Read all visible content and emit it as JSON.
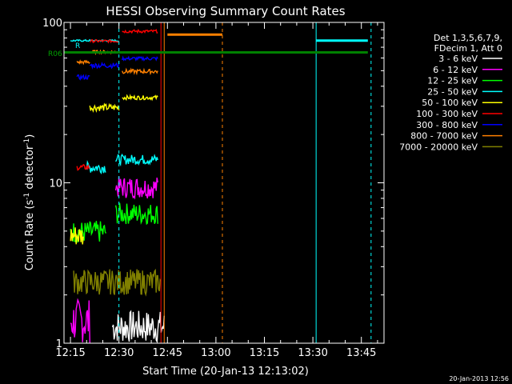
{
  "chart_data": {
    "type": "line",
    "title": "HESSI Observing Summary Count Rates",
    "xlabel": "Start Time (20-Jan-13 12:13:02)",
    "ylabel_main": "Count Rate (s",
    "ylabel_sup1": "-1",
    "ylabel_mid": " detector",
    "ylabel_sup2": "-1",
    "ylabel_end": ")",
    "yscale": "log",
    "ylim": [
      1,
      100
    ],
    "xlim_minutes": [
      "12:13",
      "13:52"
    ],
    "xticks": [
      "12:15",
      "12:30",
      "12:45",
      "13:00",
      "13:15",
      "13:30",
      "13:45"
    ],
    "yticks": [
      "1",
      "10",
      "100"
    ],
    "timestamp": "20-Jan-2013 12:56",
    "legend": {
      "title1": "Det 1,3,5,6,7,9,",
      "title2": "FDecim 1, Att 0",
      "placement": "right",
      "entries": [
        {
          "label": "3 - 6 keV",
          "color": "#ffffff"
        },
        {
          "label": "6 - 12 keV",
          "color": "#ff00ff"
        },
        {
          "label": "12 - 25 keV",
          "color": "#00ff00"
        },
        {
          "label": "25 - 50 keV",
          "color": "#00ffff"
        },
        {
          "label": "50 - 100 keV",
          "color": "#ffff00"
        },
        {
          "label": "100 - 300 keV",
          "color": "#ff0000"
        },
        {
          "label": "300 - 800 keV",
          "color": "#0000ff"
        },
        {
          "label": "800 - 7000 keV",
          "color": "#ff8000"
        },
        {
          "label": "7000 - 20000 keV",
          "color": "#808000"
        }
      ]
    },
    "markers": [
      {
        "label": "R06",
        "color": "#008000"
      },
      {
        "label": "R",
        "color": "#00ffff"
      }
    ],
    "series": [
      {
        "name": "3 - 6 keV",
        "color": "#ffffff",
        "segments": [
          {
            "t": [
              "12:28",
              "12:44"
            ],
            "y": [
              1.0,
              1.6
            ]
          }
        ]
      },
      {
        "name": "6 - 12 keV",
        "color": "#ff00ff",
        "segments": [
          {
            "t": [
              "12:15",
              "12:21"
            ],
            "y": [
              1.0,
              1.9
            ]
          },
          {
            "t": [
              "12:29",
              "12:42"
            ],
            "y": [
              8.0,
              11.0
            ]
          }
        ]
      },
      {
        "name": "12 - 25 keV",
        "color": "#00ff00",
        "segments": [
          {
            "t": [
              "12:15",
              "12:26"
            ],
            "y": [
              4.2,
              5.8
            ]
          },
          {
            "t": [
              "12:29",
              "12:42"
            ],
            "y": [
              5.5,
              7.5
            ]
          }
        ]
      },
      {
        "name": "25 - 50 keV",
        "color": "#00ffff",
        "segments": [
          {
            "t": [
              "12:15",
              "12:30"
            ],
            "y": [
              76,
              78
            ]
          },
          {
            "t": [
              "12:20",
              "12:26"
            ],
            "y": [
              11.5,
              13.5
            ]
          },
          {
            "t": [
              "12:29",
              "12:42"
            ],
            "y": [
              13.0,
              15.0
            ]
          },
          {
            "t": [
              "13:31",
              "13:47"
            ],
            "y": [
              77,
              77
            ]
          }
        ]
      },
      {
        "name": "50 - 100 keV",
        "color": "#ffff00",
        "segments": [
          {
            "t": [
              "12:15",
              "12:19"
            ],
            "y": [
              4.0,
              5.5
            ]
          },
          {
            "t": [
              "12:21",
              "12:30"
            ],
            "y": [
              28,
              31
            ]
          },
          {
            "t": [
              "12:31",
              "12:42"
            ],
            "y": [
              33,
              35
            ]
          }
        ]
      },
      {
        "name": "100 - 300 keV",
        "color": "#ff0000",
        "segments": [
          {
            "t": [
              "12:17",
              "12:21"
            ],
            "y": [
              12,
              13
            ]
          },
          {
            "t": [
              "12:21",
              "12:30"
            ],
            "y": [
              75,
              78
            ]
          },
          {
            "t": [
              "12:31",
              "12:42"
            ],
            "y": [
              86,
              90
            ]
          }
        ]
      },
      {
        "name": "300 - 800 keV",
        "color": "#0000ff",
        "segments": [
          {
            "t": [
              "12:17",
              "12:21"
            ],
            "y": [
              44,
              47
            ]
          },
          {
            "t": [
              "12:21",
              "12:30"
            ],
            "y": [
              52,
              56
            ]
          },
          {
            "t": [
              "12:31",
              "12:42"
            ],
            "y": [
              58,
              61
            ]
          }
        ]
      },
      {
        "name": "800 - 7000 keV",
        "color": "#ff8000",
        "segments": [
          {
            "t": [
              "12:17",
              "12:21"
            ],
            "y": [
              55,
              58
            ]
          },
          {
            "t": [
              "12:21",
              "12:30"
            ],
            "y": [
              64,
              67
            ]
          },
          {
            "t": [
              "12:31",
              "12:42"
            ],
            "y": [
              48,
              51
            ]
          },
          {
            "t": [
              "12:45",
              "13:02"
            ],
            "y": [
              84,
              84
            ]
          }
        ]
      },
      {
        "name": "7000 - 20000 keV",
        "color": "#808000",
        "segments": [
          {
            "t": [
              "12:16",
              "12:43"
            ],
            "y": [
              2.0,
              2.9
            ]
          }
        ]
      }
    ]
  }
}
